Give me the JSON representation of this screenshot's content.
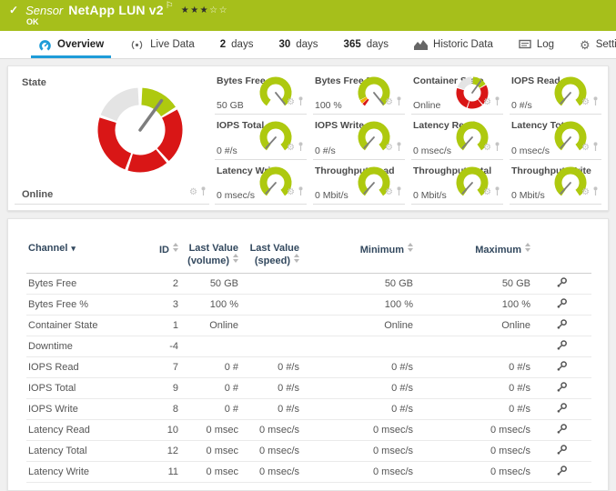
{
  "colors": {
    "status_green": "#a6bf1b",
    "gauge_green": "#aec90f",
    "red": "#d91616",
    "yellow": "#f2b200",
    "gray_segment": "#e4e4e4",
    "accent_blue": "#1e9cd8",
    "header_navy": "#32485e",
    "needle_gray": "#7d7d7d"
  },
  "statusbar": {
    "check": "✓",
    "kind": "Sensor",
    "title": "NetApp LUN v2",
    "flag": "⚐",
    "stars_filled": 3,
    "stars_total": 5,
    "status": "OK"
  },
  "tabs": [
    {
      "label": "Overview",
      "icon": "gauge",
      "active": true
    },
    {
      "label": "Live Data",
      "icon": "live"
    },
    {
      "prefix": "2",
      "label": "days"
    },
    {
      "prefix": "30",
      "label": "days"
    },
    {
      "prefix": "365",
      "label": "days"
    },
    {
      "label": "Historic Data",
      "icon": "chart"
    },
    {
      "label": "Log",
      "icon": "log"
    },
    {
      "label": "Settings",
      "icon": "gear"
    }
  ],
  "overview": {
    "state_label": "State",
    "state_value": "Online",
    "state_style": "state",
    "state_needle_deg": 36
  },
  "gauges": [
    {
      "title": "Bytes Free",
      "value": "50 GB",
      "style": "green",
      "needle_deg": 141
    },
    {
      "title": "Bytes Free %",
      "value": "100 %",
      "style": "green-warn",
      "needle_deg": 141
    },
    {
      "title": "Container State",
      "value": "Online",
      "style": "state",
      "needle_deg": 36
    },
    {
      "title": "IOPS Read",
      "value": "0 #/s",
      "style": "green",
      "needle_deg": 222
    },
    {
      "title": "IOPS Total",
      "value": "0 #/s",
      "style": "green",
      "needle_deg": 222
    },
    {
      "title": "IOPS Write",
      "value": "0 #/s",
      "style": "green",
      "needle_deg": 222
    },
    {
      "title": "Latency Read",
      "value": "0 msec/s",
      "style": "green",
      "needle_deg": 222
    },
    {
      "title": "Latency Total",
      "value": "0 msec/s",
      "style": "green",
      "needle_deg": 222
    },
    {
      "title": "Latency Write",
      "value": "0 msec/s",
      "style": "green",
      "needle_deg": 222
    },
    {
      "title": "Throughput Read",
      "value": "0 Mbit/s",
      "style": "green",
      "needle_deg": 222
    },
    {
      "title": "Throughput Total",
      "value": "0 Mbit/s",
      "style": "green",
      "needle_deg": 222
    },
    {
      "title": "Throughput Write",
      "value": "0 Mbit/s",
      "style": "green",
      "needle_deg": 222
    }
  ],
  "table": {
    "header": {
      "channel": "Channel",
      "id": "ID",
      "volume": "Last Value (volume)",
      "speed": "Last Value (speed)",
      "min": "Minimum",
      "max": "Maximum"
    },
    "rows": [
      {
        "channel": "Bytes Free",
        "id": "2",
        "volume": "50 GB",
        "speed": "",
        "min": "50 GB",
        "max": "50 GB"
      },
      {
        "channel": "Bytes Free %",
        "id": "3",
        "volume": "100 %",
        "speed": "",
        "min": "100 %",
        "max": "100 %"
      },
      {
        "channel": "Container State",
        "id": "1",
        "volume": "Online",
        "speed": "",
        "min": "Online",
        "max": "Online"
      },
      {
        "channel": "Downtime",
        "id": "-4",
        "volume": "",
        "speed": "",
        "min": "",
        "max": ""
      },
      {
        "channel": "IOPS Read",
        "id": "7",
        "volume": "0 #",
        "speed": "0 #/s",
        "min": "0 #/s",
        "max": "0 #/s"
      },
      {
        "channel": "IOPS Total",
        "id": "9",
        "volume": "0 #",
        "speed": "0 #/s",
        "min": "0 #/s",
        "max": "0 #/s"
      },
      {
        "channel": "IOPS Write",
        "id": "8",
        "volume": "0 #",
        "speed": "0 #/s",
        "min": "0 #/s",
        "max": "0 #/s"
      },
      {
        "channel": "Latency Read",
        "id": "10",
        "volume": "0 msec",
        "speed": "0 msec/s",
        "min": "0 msec/s",
        "max": "0 msec/s"
      },
      {
        "channel": "Latency Total",
        "id": "12",
        "volume": "0 msec",
        "speed": "0 msec/s",
        "min": "0 msec/s",
        "max": "0 msec/s"
      },
      {
        "channel": "Latency Write",
        "id": "11",
        "volume": "0 msec",
        "speed": "0 msec/s",
        "min": "0 msec/s",
        "max": "0 msec/s"
      }
    ]
  }
}
